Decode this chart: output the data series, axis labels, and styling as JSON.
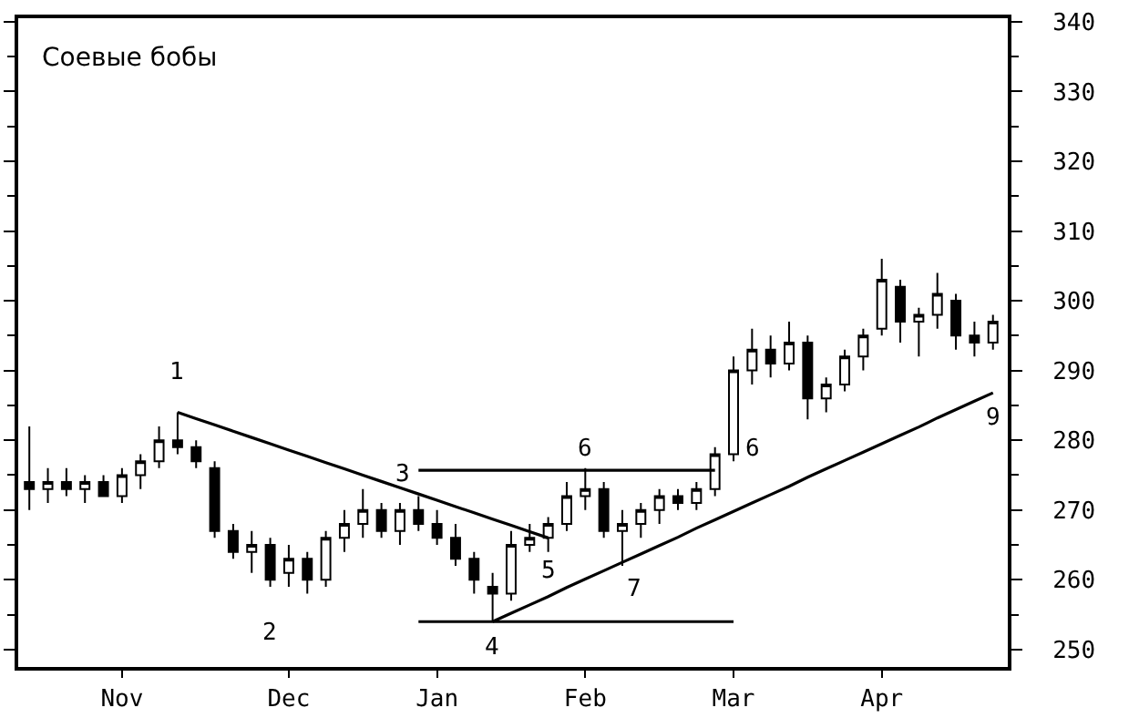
{
  "chart_data": {
    "type": "candlestick",
    "title": "Соевые бобы",
    "categories": [
      null,
      null,
      null,
      null,
      null,
      "Nov",
      null,
      null,
      null,
      null,
      null,
      null,
      null,
      null,
      "Dec",
      null,
      null,
      null,
      null,
      null,
      null,
      null,
      "Jan",
      null,
      null,
      null,
      null,
      null,
      null,
      null,
      "Feb",
      null,
      null,
      null,
      null,
      null,
      null,
      null,
      "Mar",
      null,
      null,
      null,
      null,
      null,
      null,
      null,
      "Apr",
      null,
      null,
      null,
      null,
      null,
      null
    ],
    "ohlc": [
      [
        274,
        282,
        270,
        273
      ],
      [
        273,
        276,
        271,
        274
      ],
      [
        274,
        276,
        272,
        273
      ],
      [
        273,
        275,
        271,
        274
      ],
      [
        274,
        275,
        272,
        272
      ],
      [
        272,
        276,
        271,
        275
      ],
      [
        275,
        278,
        273,
        277
      ],
      [
        277,
        282,
        276,
        280
      ],
      [
        280,
        284,
        278,
        279
      ],
      [
        279,
        280,
        276,
        277
      ],
      [
        276,
        277,
        266,
        267
      ],
      [
        267,
        268,
        263,
        264
      ],
      [
        264,
        267,
        261,
        265
      ],
      [
        265,
        266,
        259,
        260
      ],
      [
        261,
        265,
        259,
        263
      ],
      [
        263,
        264,
        258,
        260
      ],
      [
        260,
        267,
        259,
        266
      ],
      [
        266,
        270,
        264,
        268
      ],
      [
        268,
        273,
        266,
        270
      ],
      [
        270,
        271,
        266,
        267
      ],
      [
        267,
        271,
        265,
        270
      ],
      [
        270,
        272,
        267,
        268
      ],
      [
        268,
        270,
        265,
        266
      ],
      [
        266,
        268,
        262,
        263
      ],
      [
        263,
        264,
        258,
        260
      ],
      [
        259,
        261,
        254,
        258
      ],
      [
        258,
        267,
        257,
        265
      ],
      [
        265,
        268,
        264,
        266
      ],
      [
        266,
        269,
        264,
        268
      ],
      [
        268,
        274,
        267,
        272
      ],
      [
        272,
        276,
        270,
        273
      ],
      [
        273,
        274,
        266,
        267
      ],
      [
        267,
        270,
        262,
        268
      ],
      [
        268,
        271,
        266,
        270
      ],
      [
        270,
        273,
        268,
        272
      ],
      [
        272,
        273,
        270,
        271
      ],
      [
        271,
        274,
        270,
        273
      ],
      [
        273,
        279,
        272,
        278
      ],
      [
        278,
        292,
        277,
        290
      ],
      [
        290,
        296,
        288,
        293
      ],
      [
        293,
        295,
        289,
        291
      ],
      [
        291,
        297,
        290,
        294
      ],
      [
        294,
        295,
        283,
        286
      ],
      [
        286,
        289,
        284,
        288
      ],
      [
        288,
        293,
        287,
        292
      ],
      [
        292,
        296,
        290,
        295
      ],
      [
        296,
        306,
        295,
        303
      ],
      [
        302,
        303,
        294,
        297
      ],
      [
        297,
        299,
        292,
        298
      ],
      [
        298,
        304,
        296,
        301
      ],
      [
        300,
        301,
        293,
        295
      ],
      [
        295,
        297,
        292,
        294
      ],
      [
        294,
        298,
        293,
        297
      ]
    ],
    "color": "#000000",
    "series": [
      {
        "type": "line",
        "color": "#000000",
        "values": [
          null,
          null,
          null,
          null,
          null,
          null,
          null,
          null,
          284,
          283.1,
          282.2,
          281.3,
          280.4,
          279.5,
          278.6,
          277.7,
          276.8,
          275.9,
          275,
          274.1,
          273.2,
          272.3,
          271.4,
          270.5,
          269.6,
          268.7,
          267.8,
          266.9,
          266,
          null,
          null,
          null,
          null,
          null,
          null,
          null,
          null,
          null,
          null,
          null,
          null,
          null,
          null,
          null,
          null,
          null,
          null,
          null,
          null,
          null,
          null,
          null,
          null
        ]
      },
      {
        "type": "line",
        "color": "#000000",
        "values": [
          null,
          null,
          null,
          null,
          null,
          null,
          null,
          null,
          null,
          null,
          null,
          null,
          null,
          null,
          null,
          null,
          null,
          null,
          null,
          null,
          null,
          275.7,
          275.7,
          275.7,
          275.7,
          275.7,
          275.7,
          275.7,
          275.7,
          275.7,
          275.7,
          275.7,
          275.7,
          275.7,
          275.7,
          275.7,
          275.7,
          275.7,
          null,
          null,
          null,
          null,
          null,
          null,
          null,
          null,
          null,
          null,
          null,
          null,
          null,
          null,
          null
        ]
      },
      {
        "type": "line",
        "color": "#000000",
        "values": [
          null,
          null,
          null,
          null,
          null,
          null,
          null,
          null,
          null,
          null,
          null,
          null,
          null,
          null,
          null,
          null,
          null,
          null,
          null,
          null,
          null,
          254,
          254,
          254,
          254,
          254,
          254,
          254,
          254,
          254,
          254,
          254,
          254,
          254,
          254,
          254,
          254,
          254,
          254,
          null,
          null,
          null,
          null,
          null,
          null,
          null,
          null,
          null,
          null,
          null,
          null,
          null,
          null
        ]
      },
      {
        "type": "line",
        "color": "#000000",
        "values": [
          null,
          null,
          null,
          null,
          null,
          null,
          null,
          null,
          null,
          null,
          null,
          null,
          null,
          null,
          null,
          null,
          null,
          null,
          null,
          null,
          null,
          null,
          null,
          null,
          null,
          254,
          255.2,
          256.4,
          257.6,
          258.9,
          260.1,
          261.3,
          262.5,
          263.7,
          264.9,
          266.1,
          267.4,
          268.6,
          269.8,
          271.0,
          272.2,
          273.4,
          274.7,
          275.9,
          277.1,
          278.3,
          279.5,
          280.7,
          281.9,
          283.2,
          284.4,
          285.6,
          286.8
        ]
      }
    ],
    "annotations": [
      {
        "text": "1",
        "y": 284
      },
      {
        "text": "2",
        "y": 259
      },
      "3",
      {
        "text": "4",
        "y": 254
      },
      {
        "text": "5",
        "y": 266
      },
      "6",
      {
        "text": "6",
        "y": 275.7
      },
      "7",
      {
        "text": "9",
        "y": 286.8
      }
    ],
    "ylim": [
      247.5,
      340.5
    ],
    "yticks": [
      250,
      260,
      270,
      280,
      290,
      300,
      310,
      320,
      330,
      340
    ]
  }
}
